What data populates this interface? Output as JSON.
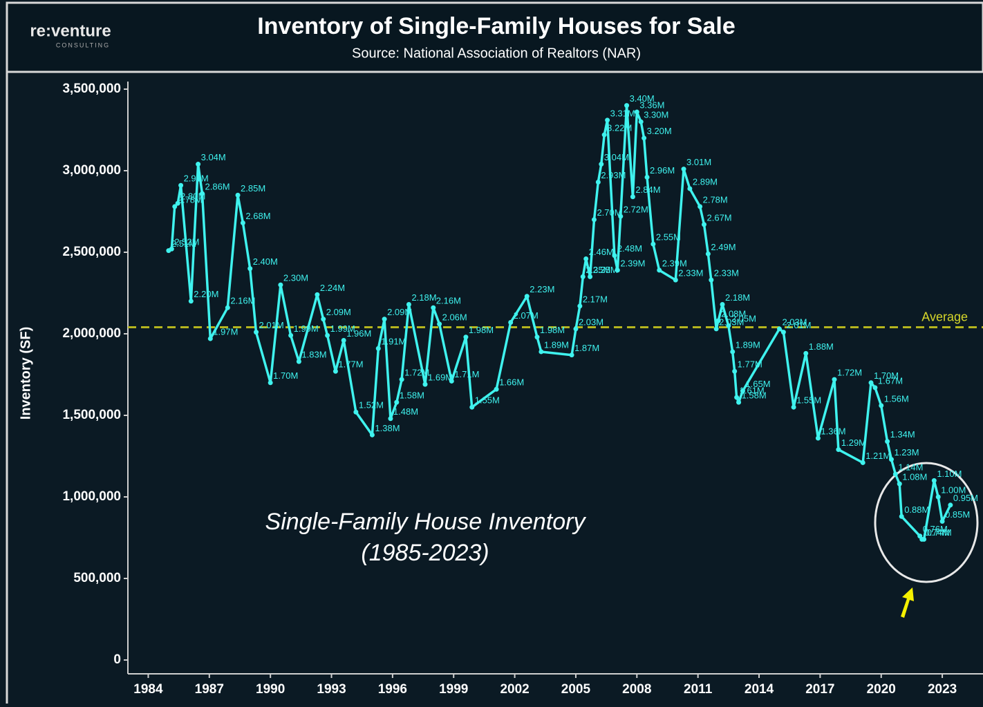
{
  "chart_data": {
    "type": "line",
    "title": "Inventory of Single-Family Houses for Sale",
    "subtitle": "Source: National Association of Realtors (NAR)",
    "logo": "re:venture",
    "logo_sub": "CONSULTING",
    "y_label": "Inventory (SF)",
    "annotation": [
      "Single-Family House Inventory",
      "(1985-2023)"
    ],
    "average": {
      "label": "Average",
      "value": 2040000
    },
    "color": "#3ff2ee",
    "xlim": [
      1983,
      2025
    ],
    "xticks": [
      1984,
      1987,
      1990,
      1993,
      1996,
      1999,
      2002,
      2005,
      2008,
      2011,
      2014,
      2017,
      2020,
      2023
    ],
    "ylim": [
      0,
      3500000
    ],
    "yticks": [
      0,
      {
        "value": 500000,
        "label": "500,000"
      },
      {
        "value": 1000000,
        "label": "1,000,000"
      },
      {
        "value": 1500000,
        "label": "1,500,000"
      },
      {
        "value": 2000000,
        "label": "2,000,000"
      },
      {
        "value": 2500000,
        "label": "2,500,000"
      },
      {
        "value": 3000000,
        "label": "3,000,000"
      },
      {
        "value": 3500000,
        "label": "3,500,000"
      }
    ],
    "x": [
      1985.0,
      1985.15,
      1985.3,
      1985.45,
      1985.6,
      1986.1,
      1986.45,
      1986.65,
      1987.05,
      1987.9,
      1988.4,
      1988.65,
      1989.0,
      1989.3,
      1990.0,
      1990.5,
      1991.0,
      1991.4,
      1992.3,
      1992.6,
      1992.8,
      1993.2,
      1993.6,
      1994.2,
      1995.0,
      1995.3,
      1995.6,
      1995.9,
      1996.2,
      1996.45,
      1996.8,
      1997.6,
      1998.0,
      1998.3,
      1998.9,
      1999.6,
      1999.9,
      2001.1,
      2001.8,
      2002.6,
      2003.1,
      2003.3,
      2004.8,
      2005.0,
      2005.2,
      2005.35,
      2005.5,
      2005.7,
      2005.9,
      2006.1,
      2006.25,
      2006.4,
      2006.55,
      2006.9,
      2007.05,
      2007.2,
      2007.5,
      2007.8,
      2008.0,
      2008.2,
      2008.35,
      2008.5,
      2008.8,
      2009.1,
      2009.9,
      2010.3,
      2010.6,
      2011.1,
      2011.3,
      2011.5,
      2011.65,
      2011.9,
      2012.0,
      2012.2,
      2012.5,
      2012.7,
      2012.8,
      2012.9,
      2013.0,
      2013.2,
      2015.0,
      2015.2,
      2015.7,
      2016.3,
      2016.9,
      2017.7,
      2017.9,
      2019.1,
      2019.5,
      2019.7,
      2020.0,
      2020.3,
      2020.5,
      2020.7,
      2020.9,
      2021.0,
      2021.9,
      2022.0,
      2022.1,
      2022.6,
      2022.8,
      2023.0,
      2023.4
    ],
    "values": [
      2510000,
      2520000,
      2780000,
      2800000,
      2910000,
      2200000,
      3040000,
      2860000,
      1970000,
      2160000,
      2850000,
      2680000,
      2400000,
      2010000,
      1700000,
      2300000,
      1990000,
      1830000,
      2240000,
      2090000,
      1990000,
      1770000,
      1960000,
      1520000,
      1380000,
      1910000,
      2090000,
      1480000,
      1580000,
      1720000,
      2180000,
      1690000,
      2160000,
      2060000,
      1710000,
      1980000,
      1550000,
      1660000,
      2070000,
      2230000,
      1980000,
      1890000,
      1870000,
      2030000,
      2170000,
      2350000,
      2460000,
      2350000,
      2700000,
      2930000,
      3040000,
      3220000,
      3310000,
      2480000,
      2390000,
      2720000,
      3400000,
      2840000,
      3360000,
      3300000,
      3200000,
      2960000,
      2550000,
      2390000,
      2330000,
      3010000,
      2890000,
      2780000,
      2670000,
      2490000,
      2330000,
      2030000,
      2080000,
      2180000,
      2050000,
      1890000,
      1770000,
      1610000,
      1580000,
      1650000,
      2030000,
      2010000,
      1550000,
      1880000,
      1360000,
      1720000,
      1290000,
      1210000,
      1700000,
      1670000,
      1560000,
      1340000,
      1230000,
      1140000,
      1080000,
      880000,
      760000,
      740000,
      740000,
      1100000,
      1000000,
      850000,
      950000
    ],
    "value_labels": [
      "2.51M",
      "2.52M",
      "2.78M",
      "2.80M",
      "2.91M",
      "2.20M",
      "3.04M",
      "2.86M",
      "1.97M",
      "2.16M",
      "2.85M",
      "2.68M",
      "2.40M",
      "2.01M",
      "1.70M",
      "2.30M",
      "1.99M",
      "1.83M",
      "2.24M",
      "2.09M",
      "1.99M",
      "1.77M",
      "1.96M",
      "1.52M",
      "1.38M",
      "1.91M",
      "2.09M",
      "1.48M",
      "1.58M",
      "1.72M",
      "2.18M",
      "1.69M",
      "2.16M",
      "2.06M",
      "1.71M",
      "1.98M",
      "1.55M",
      "1.66M",
      "2.07M",
      "2.23M",
      "1.98M",
      "1.89M",
      "1.87M",
      "2.03M",
      "2.17M",
      "2.35M",
      "2.46M",
      "2.35M",
      "2.70M",
      "2.93M",
      "3.04M",
      "3.22M",
      "3.31M",
      "2.48M",
      "2.39M",
      "2.72M",
      "3.40M",
      "2.84M",
      "3.36M",
      "3.30M",
      "3.20M",
      "2.96M",
      "2.55M",
      "2.39M",
      "2.33M",
      "3.01M",
      "2.89M",
      "2.78M",
      "2.67M",
      "2.49M",
      "2.33M",
      "2.03M",
      "2.08M",
      "2.18M",
      "2.05M",
      "1.89M",
      "1.77M",
      "1.61M",
      "1.58M",
      "1.65M",
      "2.03M",
      "2.01M",
      "1.55M",
      "1.88M",
      "1.36M",
      "1.72M",
      "1.29M",
      "1.21M",
      "1.70M",
      "1.67M",
      "1.56M",
      "1.34M",
      "1.23M",
      "1.14M",
      "1.08M",
      "0.88M",
      "0.76M",
      "0.74M",
      "0.74M",
      "1.10M",
      "1.00M",
      "0.85M",
      "0.95M"
    ]
  }
}
